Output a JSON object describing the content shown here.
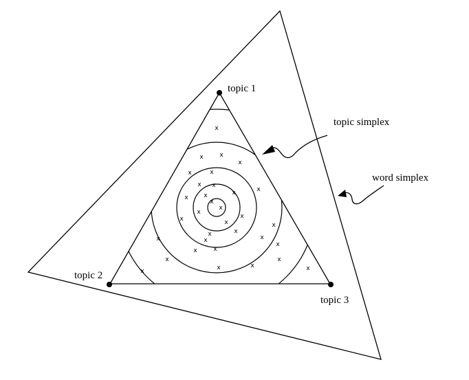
{
  "labels": {
    "topic1": "topic 1",
    "topic2": "topic 2",
    "topic3": "topic 3",
    "topic_simplex": "topic simplex",
    "word_simplex": "word simplex"
  },
  "marker_symbol": "x",
  "marker_count": 33
}
